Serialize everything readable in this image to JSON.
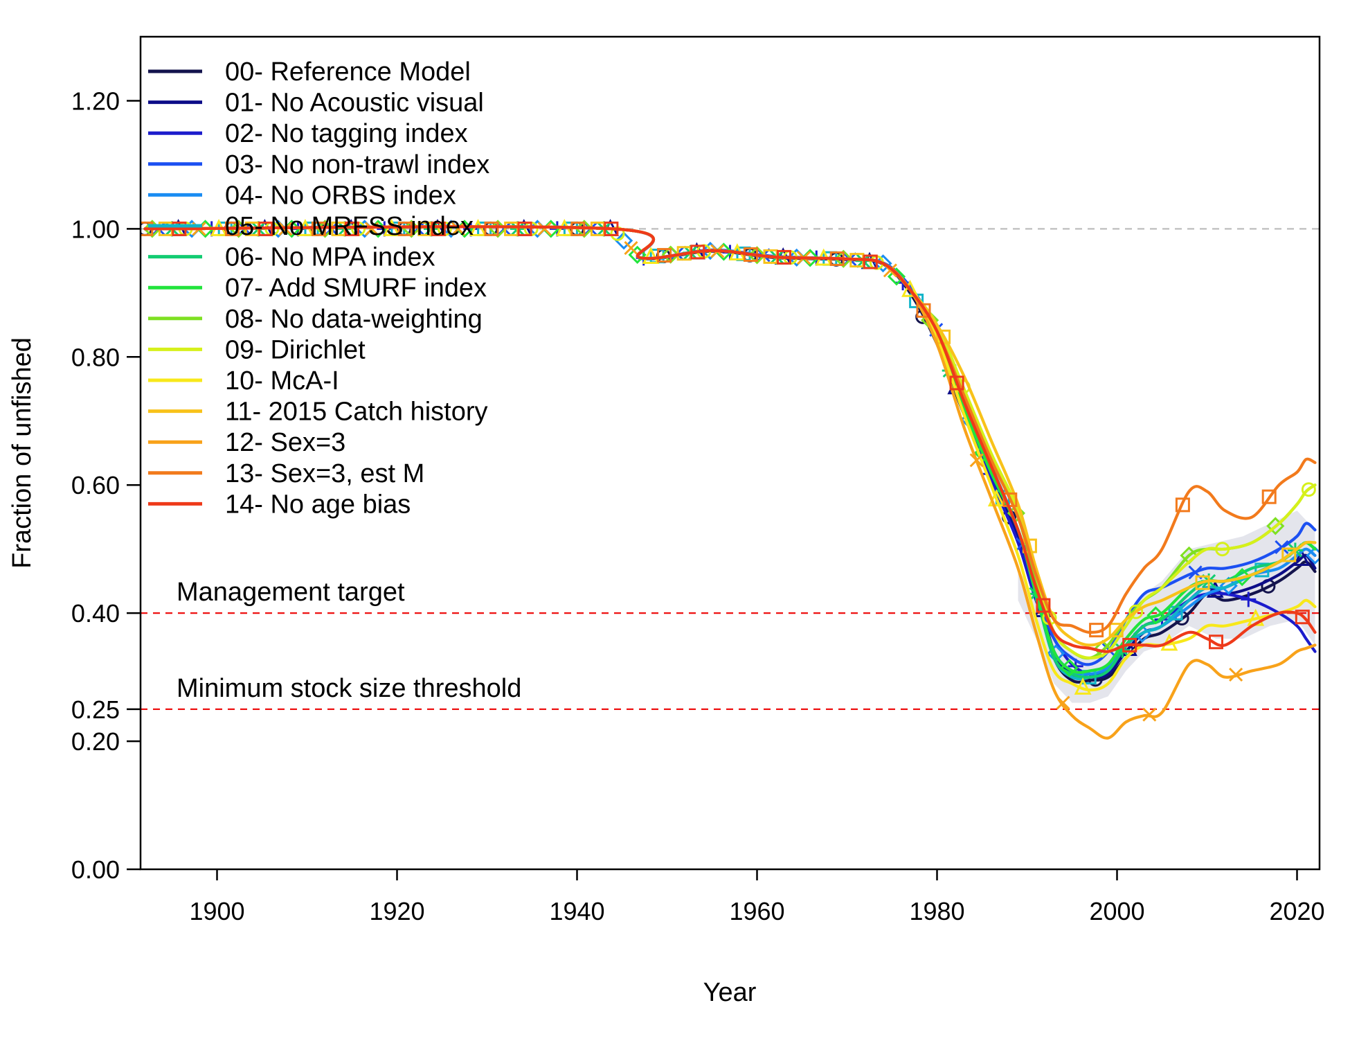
{
  "chart_data": {
    "type": "line",
    "title": "",
    "xlabel": "Year",
    "ylabel": "Fraction of unfished",
    "xlim": [
      1891.5,
      2022.5
    ],
    "ylim": [
      0,
      1.3
    ],
    "x_ticks": [
      1900,
      1920,
      1940,
      1960,
      1980,
      2000,
      2020
    ],
    "x_tick_labels": [
      "1900",
      "1920",
      "1940",
      "1960",
      "1980",
      "2000",
      "2020"
    ],
    "y_ticks": [
      0,
      0.2,
      0.25,
      0.4,
      0.6,
      0.8,
      1.0,
      1.2
    ],
    "y_tick_labels": [
      "0.00",
      "0.20",
      "0.25",
      "0.40",
      "0.60",
      "0.80",
      "1.00",
      "1.20"
    ],
    "legend_position": "top-left",
    "grid": false,
    "reference_lines": [
      {
        "y": 1.0,
        "label": "",
        "color": "#bdbdbd"
      },
      {
        "y": 0.4,
        "label": "Management target",
        "color": "#ee1111"
      },
      {
        "y": 0.25,
        "label": "Minimum stock size threshold",
        "color": "#ee1111"
      }
    ],
    "uncertainty_band": {
      "series": "00- Reference Model",
      "x": [
        1989,
        1991,
        1993,
        1995,
        1997,
        1999,
        2001,
        2003,
        2005,
        2008,
        2011,
        2014,
        2017,
        2020,
        2022
      ],
      "upper": [
        0.47,
        0.42,
        0.37,
        0.34,
        0.33,
        0.34,
        0.39,
        0.43,
        0.45,
        0.5,
        0.51,
        0.52,
        0.54,
        0.56,
        0.53
      ],
      "lower": [
        0.42,
        0.36,
        0.29,
        0.26,
        0.26,
        0.27,
        0.31,
        0.34,
        0.35,
        0.38,
        0.36,
        0.36,
        0.38,
        0.39,
        0.35
      ],
      "color": "#e4e5ec"
    },
    "series": [
      {
        "name": "00- Reference Model",
        "color": "#14144d",
        "x": [
          1892,
          1944,
          1947,
          1955,
          1962,
          1970,
          1974,
          1977,
          1980,
          1983,
          1986,
          1989,
          1991,
          1993,
          1995,
          1997,
          1999,
          2001,
          2003,
          2005,
          2008,
          2010,
          2012,
          2015,
          2018,
          2020,
          2021,
          2022
        ],
        "y": [
          1.0,
          1.0,
          0.954,
          0.965,
          0.955,
          0.952,
          0.945,
          0.9,
          0.82,
          0.71,
          0.61,
          0.52,
          0.43,
          0.33,
          0.295,
          0.295,
          0.3,
          0.33,
          0.36,
          0.37,
          0.4,
          0.43,
          0.42,
          0.43,
          0.45,
          0.47,
          0.48,
          0.465
        ]
      },
      {
        "name": "01- No Acoustic visual",
        "color": "#0d0d88",
        "x": [
          1892,
          1944,
          1947,
          1955,
          1962,
          1970,
          1974,
          1977,
          1980,
          1983,
          1986,
          1989,
          1991,
          1993,
          1995,
          1997,
          1999,
          2001,
          2003,
          2005,
          2008,
          2010,
          2012,
          2015,
          2018,
          2020,
          2021,
          2022
        ],
        "y": [
          1.0,
          1.0,
          0.955,
          0.966,
          0.956,
          0.953,
          0.946,
          0.905,
          0.83,
          0.72,
          0.62,
          0.52,
          0.44,
          0.34,
          0.305,
          0.3,
          0.305,
          0.34,
          0.37,
          0.38,
          0.42,
          0.44,
          0.43,
          0.44,
          0.46,
          0.48,
          0.49,
          0.47
        ]
      },
      {
        "name": "02- No tagging index",
        "color": "#1c1ccc",
        "x": [
          1892,
          1944,
          1947,
          1955,
          1962,
          1970,
          1974,
          1977,
          1980,
          1983,
          1986,
          1989,
          1991,
          1993,
          1995,
          1997,
          1999,
          2001,
          2003,
          2005,
          2008,
          2010,
          2012,
          2015,
          2018,
          2020,
          2021,
          2022
        ],
        "y": [
          1.0,
          1.0,
          0.954,
          0.966,
          0.956,
          0.953,
          0.946,
          0.905,
          0.83,
          0.72,
          0.61,
          0.51,
          0.42,
          0.36,
          0.32,
          0.305,
          0.31,
          0.35,
          0.38,
          0.39,
          0.42,
          0.43,
          0.43,
          0.42,
          0.4,
          0.38,
          0.36,
          0.34
        ]
      },
      {
        "name": "03- No non-trawl index",
        "color": "#1c50f2",
        "x": [
          1892,
          1944,
          1947,
          1955,
          1962,
          1970,
          1974,
          1977,
          1980,
          1983,
          1986,
          1989,
          1991,
          1993,
          1995,
          1997,
          1999,
          2001,
          2003,
          2005,
          2008,
          2010,
          2012,
          2015,
          2018,
          2020,
          2021,
          2022
        ],
        "y": [
          1.0,
          1.0,
          0.955,
          0.967,
          0.957,
          0.953,
          0.947,
          0.91,
          0.84,
          0.73,
          0.63,
          0.53,
          0.44,
          0.36,
          0.33,
          0.32,
          0.34,
          0.39,
          0.43,
          0.44,
          0.46,
          0.47,
          0.47,
          0.48,
          0.5,
          0.52,
          0.54,
          0.53
        ]
      },
      {
        "name": "04- No ORBS index",
        "color": "#1a8cf2",
        "x": [
          1892,
          1944,
          1947,
          1955,
          1962,
          1970,
          1974,
          1977,
          1980,
          1983,
          1986,
          1989,
          1991,
          1993,
          1995,
          1997,
          1999,
          2001,
          2003,
          2005,
          2008,
          2010,
          2012,
          2015,
          2018,
          2020,
          2021,
          2022
        ],
        "y": [
          1.0,
          1.0,
          0.954,
          0.966,
          0.956,
          0.953,
          0.946,
          0.905,
          0.83,
          0.72,
          0.63,
          0.53,
          0.43,
          0.34,
          0.31,
          0.305,
          0.315,
          0.35,
          0.37,
          0.38,
          0.41,
          0.43,
          0.44,
          0.46,
          0.47,
          0.49,
          0.5,
          0.49
        ]
      },
      {
        "name": "05- No MRFSS index",
        "color": "#12b4c8",
        "x": [
          1892,
          1944,
          1947,
          1955,
          1962,
          1970,
          1974,
          1977,
          1980,
          1983,
          1986,
          1989,
          1991,
          1993,
          1995,
          1997,
          1999,
          2001,
          2003,
          2005,
          2008,
          2010,
          2012,
          2015,
          2018,
          2020,
          2021,
          2022
        ],
        "y": [
          1.0,
          1.0,
          0.955,
          0.966,
          0.956,
          0.953,
          0.946,
          0.905,
          0.83,
          0.72,
          0.62,
          0.53,
          0.43,
          0.33,
          0.3,
          0.3,
          0.31,
          0.35,
          0.37,
          0.38,
          0.42,
          0.44,
          0.44,
          0.46,
          0.48,
          0.5,
          0.51,
          0.5
        ]
      },
      {
        "name": "06- No MPA index",
        "color": "#12cc72",
        "x": [
          1892,
          1944,
          1947,
          1955,
          1962,
          1970,
          1974,
          1977,
          1980,
          1983,
          1986,
          1989,
          1991,
          1993,
          1995,
          1997,
          1999,
          2001,
          2003,
          2005,
          2008,
          2010,
          2012,
          2015,
          2018,
          2020,
          2021,
          2022
        ],
        "y": [
          1.0,
          1.0,
          0.955,
          0.966,
          0.956,
          0.953,
          0.946,
          0.905,
          0.83,
          0.72,
          0.62,
          0.53,
          0.43,
          0.33,
          0.305,
          0.3,
          0.31,
          0.35,
          0.38,
          0.39,
          0.43,
          0.45,
          0.45,
          0.47,
          0.48,
          0.5,
          0.51,
          0.5
        ]
      },
      {
        "name": "07- Add SMURF index",
        "color": "#22e43c",
        "x": [
          1892,
          1944,
          1947,
          1955,
          1962,
          1970,
          1974,
          1977,
          1980,
          1983,
          1986,
          1989,
          1991,
          1993,
          1995,
          1997,
          1999,
          2001,
          2003,
          2005,
          2008,
          2010,
          2012,
          2015,
          2018,
          2020,
          2021,
          2022
        ],
        "y": [
          1.0,
          1.0,
          0.955,
          0.966,
          0.956,
          0.953,
          0.946,
          0.905,
          0.83,
          0.72,
          0.62,
          0.53,
          0.43,
          0.34,
          0.31,
          0.31,
          0.32,
          0.36,
          0.39,
          0.4,
          0.44,
          0.45,
          0.45,
          0.46,
          0.48,
          0.5,
          0.51,
          0.5
        ]
      },
      {
        "name": "08- No data-weighting",
        "color": "#7ee022",
        "x": [
          1892,
          1944,
          1947,
          1955,
          1962,
          1970,
          1974,
          1977,
          1980,
          1983,
          1986,
          1989,
          1991,
          1993,
          1995,
          1997,
          1999,
          2001,
          2003,
          2005,
          2008,
          2010,
          2012,
          2015,
          2018,
          2020,
          2021,
          2022
        ],
        "y": [
          1.0,
          1.0,
          0.955,
          0.966,
          0.956,
          0.953,
          0.946,
          0.905,
          0.84,
          0.74,
          0.64,
          0.55,
          0.45,
          0.37,
          0.34,
          0.33,
          0.35,
          0.39,
          0.42,
          0.44,
          0.49,
          0.5,
          0.5,
          0.51,
          0.54,
          0.57,
          0.59,
          0.6
        ]
      },
      {
        "name": "09- Dirichlet",
        "color": "#d6f01a",
        "x": [
          1892,
          1944,
          1947,
          1955,
          1962,
          1970,
          1974,
          1977,
          1980,
          1983,
          1986,
          1989,
          1991,
          1993,
          1995,
          1997,
          1999,
          2001,
          2003,
          2005,
          2008,
          2010,
          2012,
          2015,
          2018,
          2020,
          2021,
          2022
        ],
        "y": [
          1.0,
          1.0,
          0.955,
          0.966,
          0.956,
          0.953,
          0.946,
          0.905,
          0.85,
          0.75,
          0.65,
          0.56,
          0.46,
          0.37,
          0.34,
          0.33,
          0.34,
          0.38,
          0.42,
          0.44,
          0.48,
          0.5,
          0.5,
          0.51,
          0.54,
          0.57,
          0.59,
          0.6
        ]
      },
      {
        "name": "10- McA-I",
        "color": "#f8e81a",
        "x": [
          1892,
          1944,
          1947,
          1955,
          1962,
          1970,
          1974,
          1977,
          1980,
          1983,
          1986,
          1989,
          1991,
          1993,
          1995,
          1997,
          1999,
          2001,
          2003,
          2005,
          2008,
          2010,
          2012,
          2015,
          2018,
          2020,
          2021,
          2022
        ],
        "y": [
          1.0,
          1.0,
          0.955,
          0.966,
          0.956,
          0.953,
          0.946,
          0.905,
          0.83,
          0.71,
          0.6,
          0.49,
          0.39,
          0.31,
          0.29,
          0.28,
          0.29,
          0.33,
          0.35,
          0.35,
          0.36,
          0.38,
          0.38,
          0.39,
          0.4,
          0.41,
          0.42,
          0.41
        ]
      },
      {
        "name": "11- 2015 Catch history",
        "color": "#f8c21a",
        "x": [
          1892,
          1944,
          1947,
          1955,
          1962,
          1970,
          1974,
          1977,
          1980,
          1983,
          1986,
          1989,
          1991,
          1993,
          1995,
          1997,
          1999,
          2001,
          2003,
          2005,
          2008,
          2010,
          2012,
          2015,
          2018,
          2020,
          2021,
          2022
        ],
        "y": [
          1.0,
          1.0,
          0.955,
          0.966,
          0.956,
          0.953,
          0.946,
          0.905,
          0.85,
          0.77,
          0.67,
          0.57,
          0.47,
          0.39,
          0.36,
          0.35,
          0.36,
          0.39,
          0.41,
          0.42,
          0.44,
          0.45,
          0.45,
          0.46,
          0.48,
          0.5,
          0.51,
          0.51
        ]
      },
      {
        "name": "12- Sex=3",
        "color": "#f8a21a",
        "x": [
          1892,
          1944,
          1947,
          1955,
          1962,
          1970,
          1974,
          1977,
          1980,
          1983,
          1986,
          1989,
          1991,
          1993,
          1995,
          1997,
          1999,
          2001,
          2003,
          2005,
          2008,
          2010,
          2012,
          2015,
          2018,
          2020,
          2021,
          2022
        ],
        "y": [
          1.0,
          1.0,
          0.955,
          0.966,
          0.956,
          0.953,
          0.946,
          0.905,
          0.82,
          0.69,
          0.58,
          0.47,
          0.37,
          0.28,
          0.24,
          0.22,
          0.205,
          0.23,
          0.24,
          0.245,
          0.32,
          0.32,
          0.3,
          0.31,
          0.32,
          0.34,
          0.345,
          0.35
        ]
      },
      {
        "name": "13- Sex=3, est M",
        "color": "#f27a1c",
        "x": [
          1892,
          1944,
          1947,
          1955,
          1962,
          1970,
          1974,
          1977,
          1980,
          1983,
          1986,
          1989,
          1991,
          1993,
          1995,
          1997,
          1999,
          2001,
          2003,
          2005,
          2008,
          2010,
          2012,
          2015,
          2018,
          2020,
          2021,
          2022
        ],
        "y": [
          1.0,
          1.0,
          0.955,
          0.966,
          0.956,
          0.953,
          0.946,
          0.905,
          0.84,
          0.74,
          0.64,
          0.55,
          0.46,
          0.39,
          0.38,
          0.37,
          0.38,
          0.43,
          0.47,
          0.5,
          0.59,
          0.59,
          0.56,
          0.55,
          0.6,
          0.62,
          0.64,
          0.635
        ]
      },
      {
        "name": "14- No age bias",
        "color": "#ee3a1a",
        "x": [
          1892,
          1944,
          1947,
          1955,
          1962,
          1970,
          1974,
          1977,
          1980,
          1983,
          1986,
          1989,
          1991,
          1993,
          1995,
          1997,
          1999,
          2001,
          2003,
          2005,
          2008,
          2010,
          2012,
          2015,
          2018,
          2020,
          2021,
          2022
        ],
        "y": [
          1.0,
          1.0,
          0.955,
          0.966,
          0.956,
          0.953,
          0.946,
          0.905,
          0.84,
          0.73,
          0.63,
          0.53,
          0.44,
          0.37,
          0.35,
          0.345,
          0.34,
          0.35,
          0.35,
          0.35,
          0.37,
          0.36,
          0.35,
          0.38,
          0.4,
          0.4,
          0.39,
          0.37
        ]
      }
    ]
  }
}
